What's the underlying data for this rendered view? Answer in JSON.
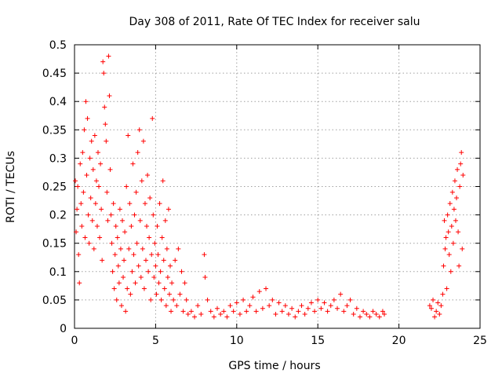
{
  "chart_data": {
    "type": "scatter",
    "title": "Day 308 of 2011, Rate Of TEC Index for receiver salu",
    "xlabel": "GPS time / hours",
    "ylabel": "ROTI / TECUs",
    "xlim": [
      0,
      25
    ],
    "ylim": [
      0,
      0.5
    ],
    "xticks": [
      "0",
      "5",
      "10",
      "15",
      "20",
      "25"
    ],
    "yticks": [
      "0",
      "0.05",
      "0.1",
      "0.15",
      "0.2",
      "0.25",
      "0.3",
      "0.35",
      "0.4",
      "0.45",
      "0.5"
    ],
    "grid": true,
    "marker": "plus",
    "marker_color": "#ff0000",
    "series": [
      {
        "points": [
          [
            0.05,
            0.26
          ],
          [
            0.1,
            0.17
          ],
          [
            0.15,
            0.21
          ],
          [
            0.2,
            0.25
          ],
          [
            0.25,
            0.13
          ],
          [
            0.3,
            0.08
          ],
          [
            0.35,
            0.29
          ],
          [
            0.4,
            0.22
          ],
          [
            0.45,
            0.18
          ],
          [
            0.5,
            0.31
          ],
          [
            0.55,
            0.24
          ],
          [
            0.6,
            0.35
          ],
          [
            0.65,
            0.16
          ],
          [
            0.7,
            0.4
          ],
          [
            0.75,
            0.27
          ],
          [
            0.8,
            0.37
          ],
          [
            0.85,
            0.2
          ],
          [
            0.9,
            0.15
          ],
          [
            0.95,
            0.3
          ],
          [
            1.0,
            0.23
          ],
          [
            1.05,
            0.33
          ],
          [
            1.1,
            0.19
          ],
          [
            1.15,
            0.28
          ],
          [
            1.2,
            0.14
          ],
          [
            1.25,
            0.34
          ],
          [
            1.3,
            0.22
          ],
          [
            1.35,
            0.26
          ],
          [
            1.4,
            0.18
          ],
          [
            1.45,
            0.31
          ],
          [
            1.5,
            0.25
          ],
          [
            1.55,
            0.16
          ],
          [
            1.6,
            0.29
          ],
          [
            1.65,
            0.21
          ],
          [
            1.7,
            0.12
          ],
          [
            1.75,
            0.47
          ],
          [
            1.8,
            0.45
          ],
          [
            1.85,
            0.39
          ],
          [
            1.9,
            0.36
          ],
          [
            1.95,
            0.33
          ],
          [
            2.0,
            0.24
          ],
          [
            2.05,
            0.19
          ],
          [
            2.1,
            0.48
          ],
          [
            2.15,
            0.41
          ],
          [
            2.2,
            0.28
          ],
          [
            2.25,
            0.2
          ],
          [
            2.3,
            0.15
          ],
          [
            2.35,
            0.1
          ],
          [
            2.4,
            0.22
          ],
          [
            2.45,
            0.07
          ],
          [
            2.5,
            0.13
          ],
          [
            2.55,
            0.18
          ],
          [
            2.6,
            0.05
          ],
          [
            2.65,
            0.16
          ],
          [
            2.7,
            0.11
          ],
          [
            2.75,
            0.08
          ],
          [
            2.8,
            0.21
          ],
          [
            2.85,
            0.14
          ],
          [
            2.9,
            0.04
          ],
          [
            2.95,
            0.19
          ],
          [
            3.0,
            0.09
          ],
          [
            3.05,
            0.12
          ],
          [
            3.1,
            0.17
          ],
          [
            3.15,
            0.03
          ],
          [
            3.2,
            0.25
          ],
          [
            3.25,
            0.07
          ],
          [
            3.3,
            0.34
          ],
          [
            3.35,
            0.14
          ],
          [
            3.4,
            0.22
          ],
          [
            3.45,
            0.06
          ],
          [
            3.5,
            0.18
          ],
          [
            3.55,
            0.1
          ],
          [
            3.6,
            0.29
          ],
          [
            3.65,
            0.13
          ],
          [
            3.7,
            0.2
          ],
          [
            3.75,
            0.08
          ],
          [
            3.8,
            0.24
          ],
          [
            3.85,
            0.15
          ],
          [
            3.9,
            0.31
          ],
          [
            3.95,
            0.11
          ],
          [
            4.0,
            0.35
          ],
          [
            4.05,
            0.19
          ],
          [
            4.1,
            0.09
          ],
          [
            4.15,
            0.26
          ],
          [
            4.2,
            0.14
          ],
          [
            4.25,
            0.33
          ],
          [
            4.3,
            0.07
          ],
          [
            4.35,
            0.22
          ],
          [
            4.4,
            0.12
          ],
          [
            4.45,
            0.18
          ],
          [
            4.5,
            0.27
          ],
          [
            4.55,
            0.1
          ],
          [
            4.6,
            0.16
          ],
          [
            4.65,
            0.23
          ],
          [
            4.7,
            0.05
          ],
          [
            4.75,
            0.13
          ],
          [
            4.8,
            0.37
          ],
          [
            4.85,
            0.2
          ],
          [
            4.9,
            0.09
          ],
          [
            4.95,
            0.15
          ],
          [
            5.0,
            0.11
          ],
          [
            5.05,
            0.06
          ],
          [
            5.1,
            0.18
          ],
          [
            5.15,
            0.13
          ],
          [
            5.2,
            0.08
          ],
          [
            5.25,
            0.22
          ],
          [
            5.3,
            0.1
          ],
          [
            5.35,
            0.05
          ],
          [
            5.4,
            0.16
          ],
          [
            5.45,
            0.26
          ],
          [
            5.5,
            0.12
          ],
          [
            5.55,
            0.07
          ],
          [
            5.6,
            0.19
          ],
          [
            5.65,
            0.04
          ],
          [
            5.7,
            0.14
          ],
          [
            5.75,
            0.09
          ],
          [
            5.8,
            0.21
          ],
          [
            5.85,
            0.06
          ],
          [
            5.9,
            0.11
          ],
          [
            5.95,
            0.03
          ],
          [
            6.0,
            0.08
          ],
          [
            6.1,
            0.05
          ],
          [
            6.2,
            0.12
          ],
          [
            6.3,
            0.04
          ],
          [
            6.4,
            0.14
          ],
          [
            6.5,
            0.06
          ],
          [
            6.6,
            0.1
          ],
          [
            6.7,
            0.03
          ],
          [
            6.8,
            0.08
          ],
          [
            6.9,
            0.05
          ],
          [
            7.0,
            0.025
          ],
          [
            7.2,
            0.03
          ],
          [
            7.4,
            0.02
          ],
          [
            7.6,
            0.04
          ],
          [
            7.8,
            0.025
          ],
          [
            8.0,
            0.13
          ],
          [
            8.05,
            0.09
          ],
          [
            8.2,
            0.05
          ],
          [
            8.4,
            0.03
          ],
          [
            8.6,
            0.02
          ],
          [
            8.8,
            0.035
          ],
          [
            9.0,
            0.025
          ],
          [
            9.2,
            0.03
          ],
          [
            9.4,
            0.02
          ],
          [
            9.6,
            0.04
          ],
          [
            9.8,
            0.03
          ],
          [
            10.0,
            0.045
          ],
          [
            10.2,
            0.025
          ],
          [
            10.4,
            0.05
          ],
          [
            10.6,
            0.03
          ],
          [
            10.8,
            0.04
          ],
          [
            11.0,
            0.055
          ],
          [
            11.2,
            0.03
          ],
          [
            11.4,
            0.065
          ],
          [
            11.6,
            0.035
          ],
          [
            11.8,
            0.07
          ],
          [
            12.0,
            0.04
          ],
          [
            12.2,
            0.05
          ],
          [
            12.4,
            0.025
          ],
          [
            12.6,
            0.045
          ],
          [
            12.8,
            0.03
          ],
          [
            13.0,
            0.04
          ],
          [
            13.2,
            0.025
          ],
          [
            13.4,
            0.035
          ],
          [
            13.6,
            0.02
          ],
          [
            13.8,
            0.03
          ],
          [
            14.0,
            0.04
          ],
          [
            14.2,
            0.025
          ],
          [
            14.4,
            0.035
          ],
          [
            14.6,
            0.045
          ],
          [
            14.8,
            0.03
          ],
          [
            15.0,
            0.05
          ],
          [
            15.2,
            0.035
          ],
          [
            15.4,
            0.045
          ],
          [
            15.6,
            0.03
          ],
          [
            15.8,
            0.04
          ],
          [
            16.0,
            0.05
          ],
          [
            16.2,
            0.035
          ],
          [
            16.4,
            0.06
          ],
          [
            16.6,
            0.03
          ],
          [
            16.8,
            0.04
          ],
          [
            17.0,
            0.05
          ],
          [
            17.2,
            0.025
          ],
          [
            17.4,
            0.035
          ],
          [
            17.6,
            0.02
          ],
          [
            17.8,
            0.03
          ],
          [
            18.0,
            0.025
          ],
          [
            18.2,
            0.02
          ],
          [
            18.4,
            0.03
          ],
          [
            18.6,
            0.025
          ],
          [
            18.8,
            0.02
          ],
          [
            19.0,
            0.03
          ],
          [
            19.1,
            0.025
          ],
          [
            21.9,
            0.04
          ],
          [
            22.0,
            0.035
          ],
          [
            22.1,
            0.05
          ],
          [
            22.2,
            0.02
          ],
          [
            22.3,
            0.03
          ],
          [
            22.4,
            0.045
          ],
          [
            22.5,
            0.025
          ],
          [
            22.6,
            0.04
          ],
          [
            22.7,
            0.06
          ],
          [
            22.75,
            0.11
          ],
          [
            22.8,
            0.19
          ],
          [
            22.85,
            0.14
          ],
          [
            22.9,
            0.16
          ],
          [
            22.95,
            0.07
          ],
          [
            23.0,
            0.2
          ],
          [
            23.05,
            0.17
          ],
          [
            23.1,
            0.13
          ],
          [
            23.15,
            0.22
          ],
          [
            23.2,
            0.1
          ],
          [
            23.25,
            0.18
          ],
          [
            23.3,
            0.24
          ],
          [
            23.35,
            0.15
          ],
          [
            23.4,
            0.21
          ],
          [
            23.45,
            0.26
          ],
          [
            23.5,
            0.19
          ],
          [
            23.55,
            0.23
          ],
          [
            23.6,
            0.28
          ],
          [
            23.65,
            0.17
          ],
          [
            23.7,
            0.11
          ],
          [
            23.75,
            0.25
          ],
          [
            23.8,
            0.29
          ],
          [
            23.85,
            0.31
          ],
          [
            23.9,
            0.14
          ],
          [
            23.95,
            0.27
          ]
        ]
      }
    ]
  }
}
